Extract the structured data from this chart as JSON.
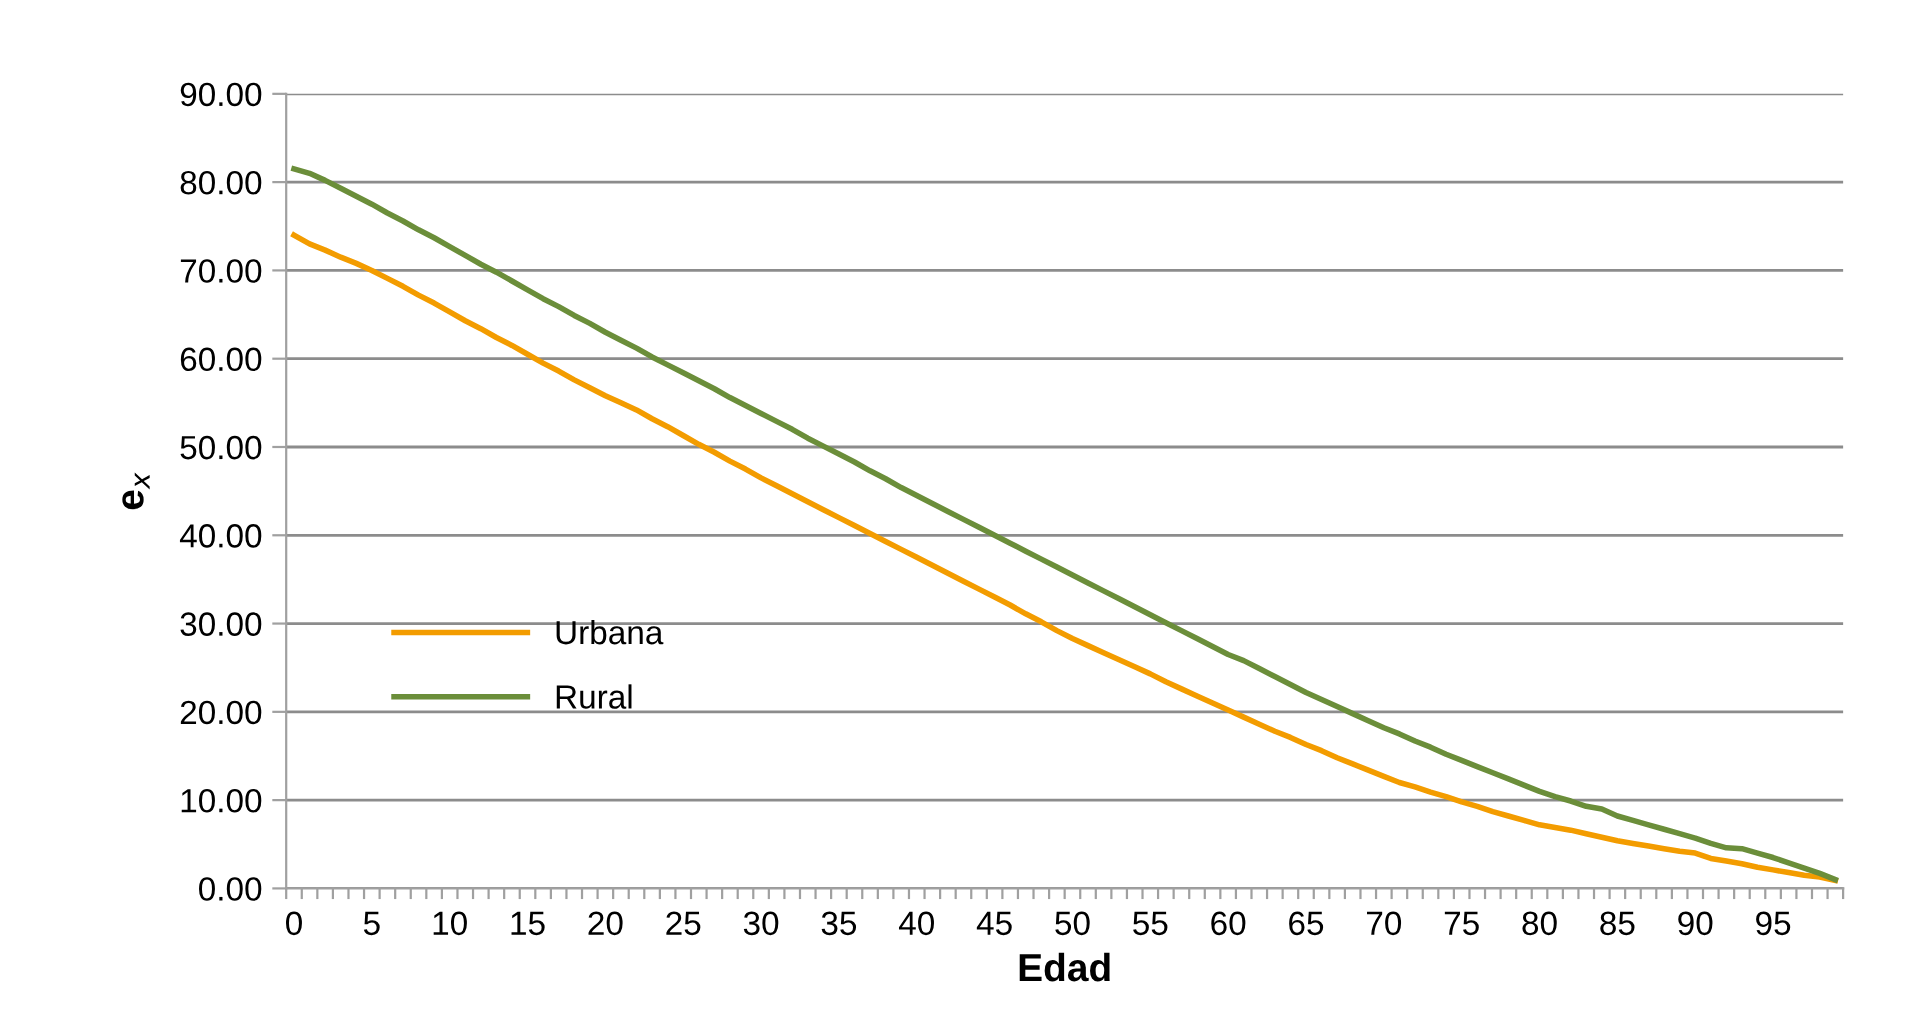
{
  "chart_data": {
    "type": "line",
    "xlabel": "Edad",
    "ylabel": "e$_{x}$",
    "categories": [
      "0",
      null,
      null,
      null,
      null,
      "5",
      null,
      null,
      null,
      null,
      "10",
      null,
      null,
      null,
      null,
      "15",
      null,
      null,
      null,
      null,
      "20",
      null,
      null,
      null,
      null,
      "25",
      null,
      null,
      null,
      null,
      "30",
      null,
      null,
      null,
      null,
      "35",
      null,
      null,
      null,
      null,
      "40",
      null,
      null,
      null,
      null,
      "45",
      null,
      null,
      null,
      null,
      "50",
      null,
      null,
      null,
      null,
      "55",
      null,
      null,
      null,
      null,
      "60",
      null,
      null,
      null,
      null,
      "65",
      null,
      null,
      null,
      null,
      "70",
      null,
      null,
      null,
      null,
      "75",
      null,
      null,
      null,
      null,
      "80",
      null,
      null,
      null,
      null,
      "85",
      null,
      null,
      null,
      null,
      "90",
      null,
      null,
      null,
      null,
      "95",
      null,
      null,
      null,
      null
    ],
    "series": [
      {
        "name": "Urbana",
        "color": "#f39c00",
        "values": [
          74.0,
          73.0,
          72.3,
          71.5,
          70.8,
          70.0,
          69.1,
          68.2,
          67.2,
          66.3,
          65.3,
          64.3,
          63.4,
          62.4,
          61.5,
          60.5,
          59.5,
          58.6,
          57.6,
          56.7,
          55.8,
          55.0,
          54.2,
          53.2,
          52.3,
          51.3,
          50.3,
          49.4,
          48.4,
          47.5,
          46.5,
          45.6,
          44.7,
          43.8,
          42.9,
          42.0,
          41.1,
          40.2,
          39.3,
          38.4,
          37.5,
          36.6,
          35.7,
          34.8,
          33.9,
          33.0,
          32.1,
          31.1,
          30.2,
          29.2,
          28.3,
          27.5,
          26.7,
          25.9,
          25.1,
          24.3,
          23.4,
          22.6,
          21.8,
          21.0,
          20.2,
          19.4,
          18.6,
          17.8,
          17.1,
          16.3,
          15.6,
          14.8,
          14.1,
          13.4,
          12.7,
          12.0,
          11.5,
          10.9,
          10.4,
          9.8,
          9.3,
          8.7,
          8.2,
          7.7,
          7.2,
          6.9,
          6.6,
          6.2,
          5.8,
          5.4,
          5.1,
          4.8,
          4.5,
          4.2,
          4.0,
          3.4,
          3.1,
          2.8,
          2.4,
          2.1,
          1.8,
          1.5,
          1.3,
          0.9
        ]
      },
      {
        "name": "Rural",
        "color": "#6b8e3a",
        "values": [
          81.5,
          81.0,
          80.2,
          79.3,
          78.4,
          77.5,
          76.5,
          75.6,
          74.6,
          73.7,
          72.7,
          71.7,
          70.7,
          69.8,
          68.8,
          67.8,
          66.8,
          65.9,
          64.9,
          64.0,
          63.0,
          62.1,
          61.2,
          60.2,
          59.3,
          58.4,
          57.5,
          56.6,
          55.6,
          54.7,
          53.8,
          52.9,
          52.0,
          51.0,
          50.1,
          49.2,
          48.3,
          47.3,
          46.4,
          45.4,
          44.5,
          43.6,
          42.7,
          41.8,
          40.9,
          40.0,
          39.1,
          38.2,
          37.3,
          36.4,
          35.5,
          34.6,
          33.7,
          32.8,
          31.9,
          31.0,
          30.1,
          29.2,
          28.3,
          27.4,
          26.5,
          25.8,
          24.9,
          24.0,
          23.1,
          22.2,
          21.4,
          20.6,
          19.8,
          19.0,
          18.2,
          17.5,
          16.7,
          16.0,
          15.2,
          14.5,
          13.8,
          13.1,
          12.4,
          11.7,
          11.0,
          10.4,
          9.9,
          9.3,
          9.0,
          8.2,
          7.7,
          7.2,
          6.7,
          6.2,
          5.7,
          5.1,
          4.6,
          4.5,
          4.0,
          3.5,
          2.9,
          2.3,
          1.7,
          1.0
        ]
      }
    ],
    "ylim": [
      0,
      90
    ],
    "yticks": [
      {
        "value": 0,
        "label": "0.00"
      },
      {
        "value": 10,
        "label": "10.00"
      },
      {
        "value": 20,
        "label": "20.00"
      },
      {
        "value": 30,
        "label": "30.00"
      },
      {
        "value": 40,
        "label": "40.00"
      },
      {
        "value": 50,
        "label": "50.00"
      },
      {
        "value": 60,
        "label": "60.00"
      },
      {
        "value": 70,
        "label": "70.00"
      },
      {
        "value": 80,
        "label": "80.00"
      },
      {
        "value": 90,
        "label": "90.00"
      }
    ],
    "grid": "y",
    "legend": "bottom left",
    "marker": "none",
    "line_style": "solid"
  }
}
